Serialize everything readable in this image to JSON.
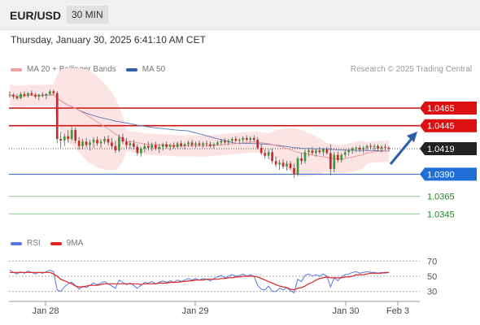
{
  "header": {
    "symbol": "EUR/USD",
    "timeframe": "30 MIN",
    "datetime": "Thursday, January 30, 2025 6:41:10 AM CET"
  },
  "legend": {
    "ma20_label": "MA 20 + Bollinger Bands",
    "ma20_color": "#e87474",
    "ma50_label": "MA 50",
    "ma50_color": "#2e5fa3",
    "research": "Research © 2025 Trading Central"
  },
  "rsi_legend": {
    "rsi_label": "RSI",
    "rsi_color": "#5577dd",
    "ma_label": "9MA",
    "ma_color": "#dd2222"
  },
  "chart_data": {
    "type": "candlestick",
    "price_levels": [
      {
        "value": "1.0465",
        "kind": "resistance",
        "color": "#cc1111"
      },
      {
        "value": "1.0445",
        "kind": "resistance",
        "color": "#cc1111"
      },
      {
        "value": "1.0419",
        "kind": "last_price",
        "color": "#222222"
      },
      {
        "value": "1.0390",
        "kind": "pivot",
        "color": "#2266cc"
      },
      {
        "value": "1.0365",
        "kind": "support",
        "color": "#229922"
      },
      {
        "value": "1.0345",
        "kind": "support",
        "color": "#229922"
      }
    ],
    "x_labels": [
      "Jan 28",
      "Jan 29",
      "Jan 30",
      "Feb 3"
    ],
    "ylim": [
      1.0325,
      1.05
    ],
    "candles": [
      [
        1.048,
        1.0484,
        1.0477,
        1.048
      ],
      [
        1.048,
        1.0482,
        1.0475,
        1.0478
      ],
      [
        1.0478,
        1.0481,
        1.0474,
        1.0476
      ],
      [
        1.0476,
        1.0483,
        1.0475,
        1.0481
      ],
      [
        1.0481,
        1.0484,
        1.0477,
        1.0479
      ],
      [
        1.0479,
        1.0483,
        1.0477,
        1.0482
      ],
      [
        1.0482,
        1.0485,
        1.0479,
        1.048
      ],
      [
        1.048,
        1.0482,
        1.0476,
        1.0478
      ],
      [
        1.0478,
        1.0481,
        1.0474,
        1.048
      ],
      [
        1.048,
        1.0483,
        1.0477,
        1.0479
      ],
      [
        1.0479,
        1.0482,
        1.0475,
        1.0481
      ],
      [
        1.0481,
        1.0486,
        1.0479,
        1.0484
      ],
      [
        1.0484,
        1.0486,
        1.048,
        1.0482
      ],
      [
        1.0482,
        1.0484,
        1.0425,
        1.043
      ],
      [
        1.043,
        1.0438,
        1.042,
        1.0428
      ],
      [
        1.0428,
        1.0436,
        1.0422,
        1.0433
      ],
      [
        1.0433,
        1.044,
        1.0426,
        1.043
      ],
      [
        1.043,
        1.0444,
        1.0428,
        1.044
      ],
      [
        1.044,
        1.0443,
        1.0425,
        1.0428
      ],
      [
        1.0428,
        1.0432,
        1.0418,
        1.0422
      ],
      [
        1.0422,
        1.043,
        1.0418,
        1.0427
      ],
      [
        1.0427,
        1.0431,
        1.042,
        1.0423
      ],
      [
        1.0423,
        1.0429,
        1.0417,
        1.0426
      ],
      [
        1.0426,
        1.0432,
        1.042,
        1.0429
      ],
      [
        1.0429,
        1.0433,
        1.0422,
        1.0425
      ],
      [
        1.0425,
        1.043,
        1.042,
        1.0427
      ],
      [
        1.0427,
        1.0433,
        1.0424,
        1.043
      ],
      [
        1.043,
        1.0434,
        1.0423,
        1.0426
      ],
      [
        1.0426,
        1.0431,
        1.0419,
        1.0422
      ],
      [
        1.0422,
        1.0428,
        1.0414,
        1.0417
      ],
      [
        1.0417,
        1.0435,
        1.0415,
        1.0432
      ],
      [
        1.0432,
        1.0436,
        1.0424,
        1.0427
      ],
      [
        1.0427,
        1.0431,
        1.0419,
        1.0423
      ],
      [
        1.0423,
        1.0428,
        1.0419,
        1.0425
      ],
      [
        1.0425,
        1.0429,
        1.0418,
        1.0421
      ],
      [
        1.0421,
        1.0424,
        1.0411,
        1.0414
      ],
      [
        1.0414,
        1.0421,
        1.041,
        1.0419
      ],
      [
        1.0419,
        1.0425,
        1.0415,
        1.0422
      ],
      [
        1.0422,
        1.0427,
        1.0417,
        1.042
      ],
      [
        1.042,
        1.0426,
        1.0416,
        1.0423
      ],
      [
        1.0423,
        1.0427,
        1.0417,
        1.0419
      ],
      [
        1.0419,
        1.0424,
        1.0414,
        1.0421
      ],
      [
        1.0421,
        1.0426,
        1.0417,
        1.0424
      ],
      [
        1.0424,
        1.0427,
        1.0419,
        1.0421
      ],
      [
        1.0421,
        1.0425,
        1.0417,
        1.0423
      ],
      [
        1.0423,
        1.0426,
        1.0419,
        1.0421
      ],
      [
        1.0421,
        1.0427,
        1.0419,
        1.0425
      ],
      [
        1.0425,
        1.0428,
        1.042,
        1.0422
      ],
      [
        1.0422,
        1.0426,
        1.0418,
        1.0424
      ],
      [
        1.0424,
        1.0428,
        1.0421,
        1.0426
      ],
      [
        1.0426,
        1.0429,
        1.0421,
        1.0423
      ],
      [
        1.0423,
        1.0427,
        1.042,
        1.0425
      ],
      [
        1.0425,
        1.0428,
        1.0421,
        1.0423
      ],
      [
        1.0423,
        1.0427,
        1.042,
        1.0425
      ],
      [
        1.0425,
        1.0428,
        1.0421,
        1.0424
      ],
      [
        1.0424,
        1.0427,
        1.042,
        1.0422
      ],
      [
        1.0422,
        1.0426,
        1.0419,
        1.0424
      ],
      [
        1.0424,
        1.0428,
        1.0422,
        1.0426
      ],
      [
        1.0426,
        1.043,
        1.0423,
        1.0428
      ],
      [
        1.0428,
        1.0431,
        1.0424,
        1.0426
      ],
      [
        1.0426,
        1.043,
        1.0423,
        1.0428
      ],
      [
        1.0428,
        1.0432,
        1.0425,
        1.043
      ],
      [
        1.043,
        1.0433,
        1.0426,
        1.0428
      ],
      [
        1.0428,
        1.0431,
        1.0424,
        1.0429
      ],
      [
        1.0429,
        1.0433,
        1.0426,
        1.0431
      ],
      [
        1.0431,
        1.0434,
        1.0427,
        1.0429
      ],
      [
        1.0429,
        1.0433,
        1.0426,
        1.0431
      ],
      [
        1.0431,
        1.0434,
        1.0427,
        1.0429
      ],
      [
        1.0429,
        1.0432,
        1.0418,
        1.042
      ],
      [
        1.042,
        1.0424,
        1.0412,
        1.0414
      ],
      [
        1.0414,
        1.0418,
        1.0408,
        1.0411
      ],
      [
        1.0411,
        1.0418,
        1.0407,
        1.0415
      ],
      [
        1.0415,
        1.0419,
        1.0402,
        1.0405
      ],
      [
        1.0405,
        1.041,
        1.0398,
        1.0401
      ],
      [
        1.0401,
        1.0406,
        1.0395,
        1.0403
      ],
      [
        1.0403,
        1.0407,
        1.0396,
        1.0399
      ],
      [
        1.0399,
        1.0405,
        1.0394,
        1.0402
      ],
      [
        1.0402,
        1.0405,
        1.0395,
        1.0397
      ],
      [
        1.0397,
        1.0402,
        1.0386,
        1.039
      ],
      [
        1.039,
        1.041,
        1.0388,
        1.0408
      ],
      [
        1.0408,
        1.0414,
        1.0401,
        1.0405
      ],
      [
        1.0405,
        1.0418,
        1.0402,
        1.0415
      ],
      [
        1.0415,
        1.042,
        1.041,
        1.0417
      ],
      [
        1.0417,
        1.0421,
        1.0412,
        1.0414
      ],
      [
        1.0414,
        1.0419,
        1.041,
        1.0417
      ],
      [
        1.0417,
        1.0421,
        1.0413,
        1.0415
      ],
      [
        1.0415,
        1.042,
        1.0411,
        1.0418
      ],
      [
        1.0418,
        1.0421,
        1.0412,
        1.0414
      ],
      [
        1.0414,
        1.0424,
        1.0389,
        1.0396
      ],
      [
        1.0396,
        1.0415,
        1.0392,
        1.0412
      ],
      [
        1.0412,
        1.0416,
        1.0403,
        1.0406
      ],
      [
        1.0406,
        1.0414,
        1.0403,
        1.0412
      ],
      [
        1.0412,
        1.0418,
        1.0409,
        1.0415
      ],
      [
        1.0415,
        1.0419,
        1.0411,
        1.0417
      ],
      [
        1.0417,
        1.0421,
        1.0413,
        1.0419
      ],
      [
        1.0419,
        1.0422,
        1.0415,
        1.042
      ],
      [
        1.042,
        1.0423,
        1.0415,
        1.0418
      ],
      [
        1.0418,
        1.0422,
        1.0414,
        1.042
      ],
      [
        1.042,
        1.0424,
        1.0417,
        1.0422
      ],
      [
        1.0422,
        1.0425,
        1.0418,
        1.0421
      ],
      [
        1.0421,
        1.0424,
        1.0417,
        1.0422
      ],
      [
        1.0422,
        1.0424,
        1.0417,
        1.0419
      ],
      [
        1.0419,
        1.0423,
        1.0415,
        1.0421
      ],
      [
        1.0421,
        1.0424,
        1.0417,
        1.042
      ],
      [
        1.042,
        1.0422,
        1.0416,
        1.0419
      ]
    ],
    "rsi_axis": [
      "70",
      "50",
      "30"
    ],
    "rsi_ylim": [
      20,
      80
    ],
    "rsi": [
      58,
      55,
      53,
      56,
      54,
      57,
      55,
      53,
      55,
      54,
      56,
      58,
      56,
      32,
      30,
      36,
      40,
      42,
      38,
      33,
      37,
      35,
      38,
      41,
      39,
      41,
      43,
      40,
      37,
      34,
      45,
      42,
      39,
      41,
      38,
      34,
      38,
      42,
      41,
      43,
      40,
      42,
      44,
      42,
      44,
      42,
      45,
      43,
      45,
      47,
      45,
      47,
      45,
      47,
      46,
      44,
      47,
      49,
      51,
      48,
      50,
      52,
      50,
      51,
      53,
      50,
      52,
      50,
      38,
      33,
      32,
      37,
      30,
      30,
      34,
      32,
      35,
      31,
      28,
      46,
      43,
      51,
      53,
      50,
      52,
      50,
      53,
      50,
      36,
      48,
      44,
      49,
      52,
      53,
      55,
      56,
      54,
      55,
      56,
      55,
      55,
      54,
      55,
      54,
      55
    ],
    "rsi_ma": [
      55,
      55,
      55,
      55,
      55,
      55,
      55,
      55,
      55,
      55,
      55,
      55,
      53,
      50,
      46,
      44,
      42,
      40,
      37,
      36,
      36,
      37,
      38,
      38,
      38,
      39,
      40,
      40,
      40,
      40,
      40,
      40,
      40,
      40,
      40,
      40,
      39,
      40,
      40,
      40,
      40,
      41,
      41,
      41,
      42,
      42,
      42,
      43,
      43,
      44,
      44,
      45,
      45,
      45,
      46,
      46,
      46,
      46,
      47,
      47,
      48,
      48,
      49,
      49,
      50,
      50,
      50,
      50,
      49,
      47,
      45,
      43,
      41,
      39,
      37,
      36,
      35,
      33,
      32,
      34,
      35,
      37,
      40,
      42,
      45,
      47,
      48,
      49,
      48,
      48,
      48,
      48,
      49,
      49,
      50,
      52,
      52,
      52,
      53,
      54,
      54,
      54,
      54,
      55,
      55
    ]
  }
}
